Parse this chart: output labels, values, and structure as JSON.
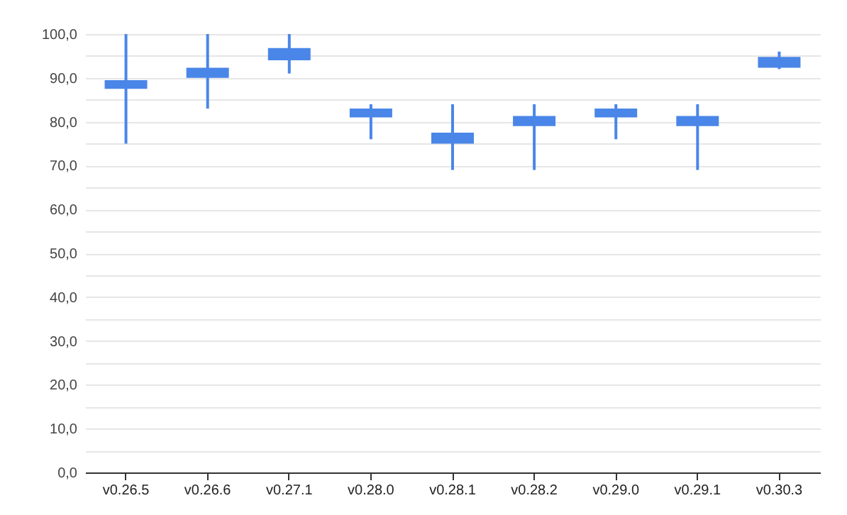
{
  "chart_data": {
    "type": "candlestick",
    "categories": [
      "v0.26.5",
      "v0.26.6",
      "v0.27.1",
      "v0.28.0",
      "v0.28.1",
      "v0.28.2",
      "v0.29.0",
      "v0.29.1",
      "v0.30.3"
    ],
    "ohlc": [
      [
        87.5,
        100,
        75,
        89.5
      ],
      [
        90,
        100,
        83,
        92.3
      ],
      [
        94,
        100,
        91,
        96.8
      ],
      [
        81,
        84,
        76,
        83
      ],
      [
        75,
        84,
        69,
        77.5
      ],
      [
        79,
        84,
        69,
        81.3
      ],
      [
        81,
        84,
        76,
        83
      ],
      [
        79,
        84,
        69,
        81.3
      ],
      [
        92.3,
        96,
        92,
        94.8
      ]
    ],
    "color": "#4a86e8",
    "ylim": [
      0,
      100
    ],
    "yticks": [
      {
        "value": 0,
        "label": "0,0"
      },
      {
        "value": 5,
        "label": null
      },
      {
        "value": 10,
        "label": "10,0"
      },
      {
        "value": 15,
        "label": null
      },
      {
        "value": 20,
        "label": "20,0"
      },
      {
        "value": 25,
        "label": null
      },
      {
        "value": 30,
        "label": "30,0"
      },
      {
        "value": 35,
        "label": null
      },
      {
        "value": 40,
        "label": "40,0"
      },
      {
        "value": 45,
        "label": null
      },
      {
        "value": 50,
        "label": "50,0"
      },
      {
        "value": 55,
        "label": null
      },
      {
        "value": 60,
        "label": "60,0"
      },
      {
        "value": 65,
        "label": null
      },
      {
        "value": 70,
        "label": "70,0"
      },
      {
        "value": 75,
        "label": null
      },
      {
        "value": 80,
        "label": "80,0"
      },
      {
        "value": 85,
        "label": null
      },
      {
        "value": 90,
        "label": "90,0"
      },
      {
        "value": 95,
        "label": null
      },
      {
        "value": 100,
        "label": "100,0"
      }
    ],
    "grid": "y"
  }
}
